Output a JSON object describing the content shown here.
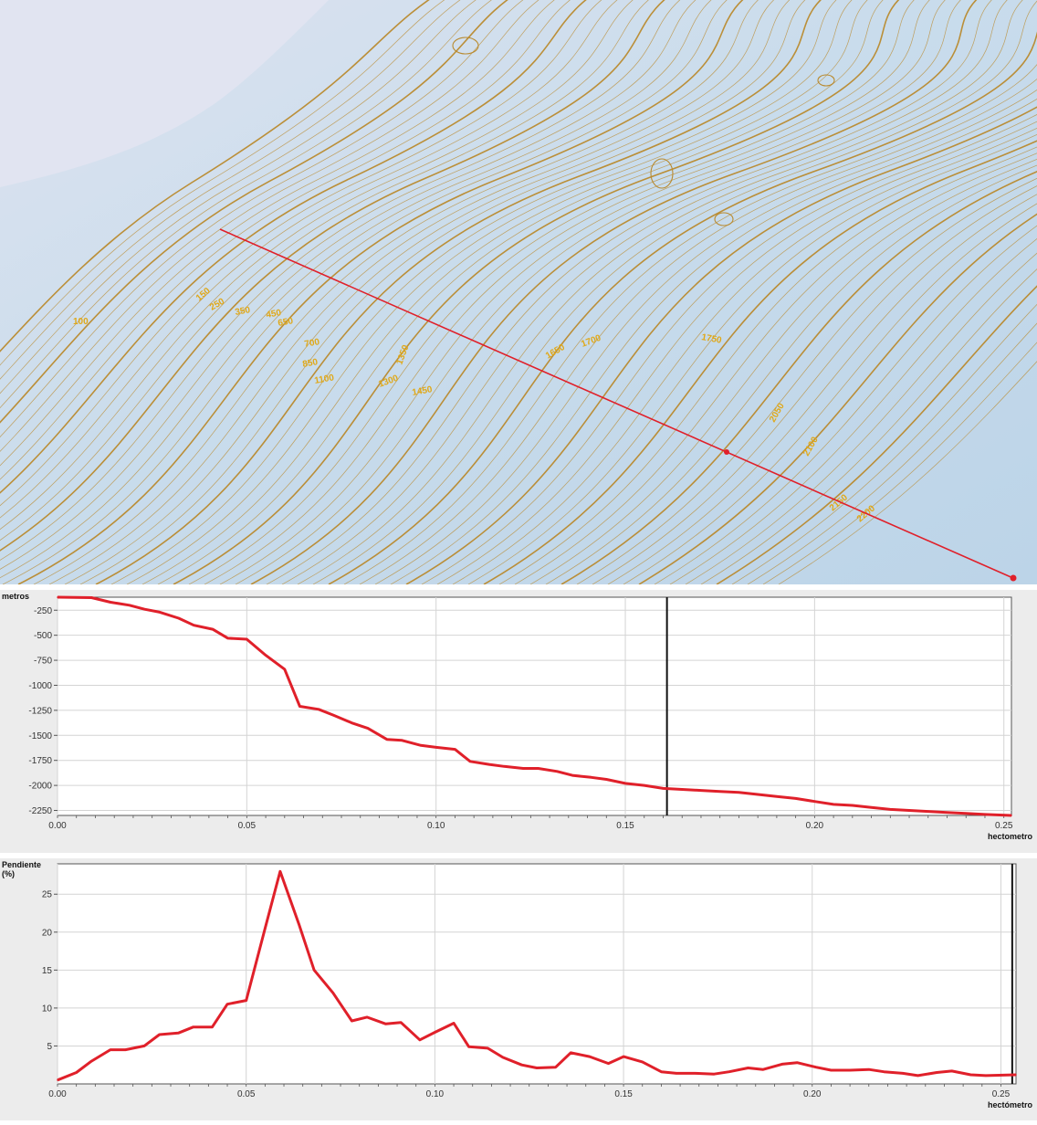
{
  "map": {
    "contour_labels": [
      "100",
      "150",
      "250",
      "350",
      "450",
      "650",
      "700",
      "850",
      "1100",
      "1300",
      "1350",
      "1450",
      "1650",
      "1700",
      "1750",
      "2050",
      "2100",
      "2150",
      "2200"
    ],
    "profile_line_color": "#e0202a",
    "background_color": "#c9dceb",
    "contour_color": "#b98a2e"
  },
  "chart_data": [
    {
      "type": "line",
      "ylabel": "metros",
      "xlabel": "hectometro",
      "xlim": [
        0,
        0.252
      ],
      "ylim": [
        -2300,
        -120
      ],
      "x_ticks": [
        "0.00",
        "0.05",
        "0.10",
        "0.15",
        "0.20",
        "0.25"
      ],
      "x_tick_values": [
        0,
        0.05,
        0.1,
        0.15,
        0.2,
        0.25
      ],
      "y_ticks": [
        "-250",
        "-500",
        "-750",
        "-1000",
        "-1250",
        "-1500",
        "-1750",
        "-2000",
        "-2250"
      ],
      "y_tick_values": [
        -250,
        -500,
        -750,
        -1000,
        -1250,
        -1500,
        -1750,
        -2000,
        -2250
      ],
      "grid": true,
      "cursor_x": 0.161,
      "line_color": "#e0202a",
      "x": [
        0,
        0.009,
        0.014,
        0.019,
        0.023,
        0.027,
        0.032,
        0.036,
        0.041,
        0.045,
        0.05,
        0.055,
        0.06,
        0.064,
        0.069,
        0.073,
        0.078,
        0.082,
        0.087,
        0.091,
        0.096,
        0.1,
        0.105,
        0.109,
        0.114,
        0.118,
        0.123,
        0.127,
        0.132,
        0.136,
        0.141,
        0.145,
        0.15,
        0.155,
        0.16,
        0.165,
        0.17,
        0.175,
        0.18,
        0.185,
        0.19,
        0.195,
        0.2,
        0.205,
        0.21,
        0.215,
        0.22,
        0.225,
        0.23,
        0.235,
        0.24,
        0.245,
        0.252
      ],
      "values": [
        -120,
        -125,
        -170,
        -200,
        -240,
        -270,
        -330,
        -400,
        -440,
        -530,
        -540,
        -700,
        -840,
        -1210,
        -1240,
        -1300,
        -1380,
        -1430,
        -1540,
        -1550,
        -1600,
        -1620,
        -1640,
        -1760,
        -1790,
        -1810,
        -1830,
        -1830,
        -1860,
        -1900,
        -1920,
        -1940,
        -1980,
        -2000,
        -2030,
        -2040,
        -2050,
        -2060,
        -2070,
        -2090,
        -2110,
        -2130,
        -2160,
        -2190,
        -2200,
        -2220,
        -2240,
        -2250,
        -2260,
        -2270,
        -2280,
        -2290,
        -2300
      ]
    },
    {
      "type": "line",
      "ylabel": "Pendiente (%)",
      "xlabel": "hectómetro",
      "xlim": [
        0,
        0.254
      ],
      "ylim": [
        0,
        29
      ],
      "x_ticks": [
        "0.00",
        "0.05",
        "0.10",
        "0.15",
        "0.20",
        "0.25"
      ],
      "x_tick_values": [
        0,
        0.05,
        0.1,
        0.15,
        0.2,
        0.25
      ],
      "y_ticks": [
        "5",
        "10",
        "15",
        "20",
        "25"
      ],
      "y_tick_values": [
        5,
        10,
        15,
        20,
        25
      ],
      "grid": true,
      "cursor_x": 0.253,
      "line_color": "#e0202a",
      "x": [
        0,
        0.005,
        0.009,
        0.014,
        0.018,
        0.023,
        0.027,
        0.032,
        0.036,
        0.041,
        0.045,
        0.05,
        0.055,
        0.059,
        0.064,
        0.068,
        0.073,
        0.078,
        0.082,
        0.087,
        0.091,
        0.096,
        0.1,
        0.105,
        0.109,
        0.114,
        0.118,
        0.123,
        0.127,
        0.132,
        0.136,
        0.141,
        0.146,
        0.15,
        0.155,
        0.16,
        0.164,
        0.169,
        0.174,
        0.178,
        0.183,
        0.187,
        0.192,
        0.196,
        0.201,
        0.205,
        0.21,
        0.215,
        0.219,
        0.224,
        0.228,
        0.233,
        0.237,
        0.242,
        0.246,
        0.254
      ],
      "values": [
        0.5,
        1.5,
        3.0,
        4.5,
        4.5,
        5.0,
        6.5,
        6.7,
        7.5,
        7.5,
        10.5,
        11.0,
        20.5,
        28.0,
        21.0,
        15.0,
        12.0,
        8.3,
        8.8,
        7.9,
        8.1,
        5.8,
        6.8,
        8.0,
        4.9,
        4.7,
        3.5,
        2.5,
        2.1,
        2.2,
        4.1,
        3.6,
        2.7,
        3.6,
        2.9,
        1.6,
        1.4,
        1.4,
        1.3,
        1.6,
        2.1,
        1.9,
        2.6,
        2.8,
        2.2,
        1.8,
        1.8,
        1.9,
        1.6,
        1.4,
        1.1,
        1.5,
        1.7,
        1.2,
        1.1,
        1.2
      ]
    }
  ]
}
